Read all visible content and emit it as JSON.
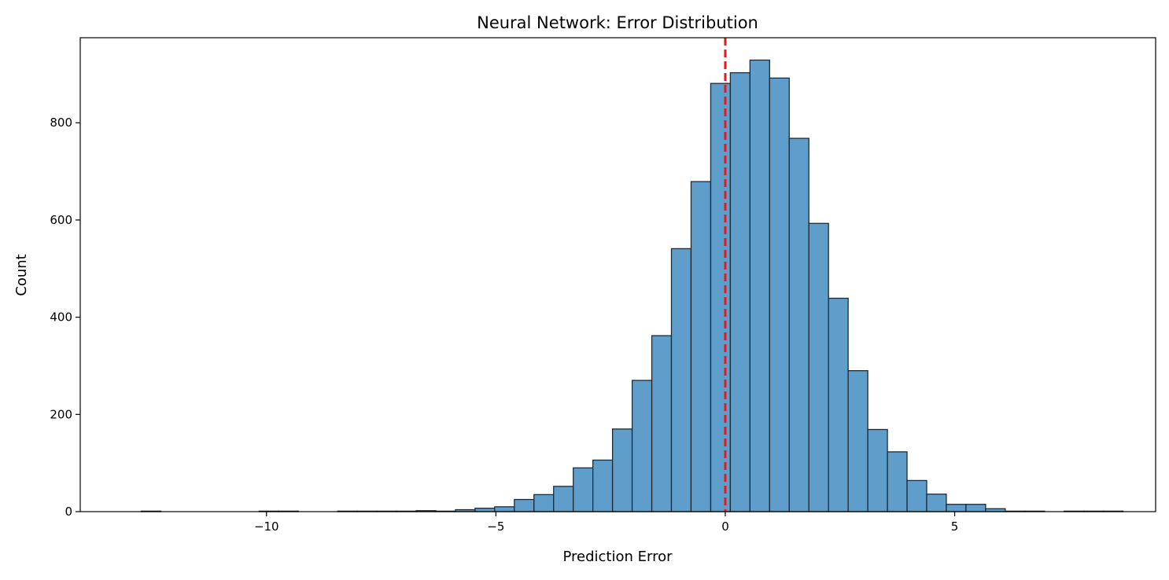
{
  "chart_data": {
    "type": "bar",
    "title": "Neural Network: Error Distribution",
    "xlabel": "Prediction Error",
    "ylabel": "Count",
    "xlim": [
      -14.06,
      9.38
    ],
    "ylim": [
      0,
      975
    ],
    "x_ticks": [
      -10,
      -5,
      0,
      5
    ],
    "x_tick_labels": [
      "−10",
      "−5",
      "0",
      "5"
    ],
    "y_ticks": [
      0,
      200,
      400,
      600,
      800
    ],
    "y_tick_labels": [
      "0",
      "200",
      "400",
      "600",
      "800"
    ],
    "grid": false,
    "bins": {
      "start": -12.73,
      "width": 0.428,
      "counts": [
        1,
        0,
        0,
        0,
        0,
        0,
        1,
        1,
        0,
        0,
        1,
        1,
        1,
        1,
        2,
        1,
        4,
        7,
        10,
        25,
        35,
        52,
        90,
        106,
        170,
        270,
        362,
        541,
        679,
        881,
        903,
        929,
        892,
        768,
        593,
        439,
        290,
        169,
        123,
        64,
        36,
        15,
        15,
        6,
        1,
        1,
        0,
        1,
        1,
        1
      ]
    },
    "bar_color": "#5f9ecb",
    "bar_edge_color": "#1f2a35",
    "reference_line": {
      "x": 0,
      "color": "#e31a1c",
      "style": "dashed"
    }
  }
}
